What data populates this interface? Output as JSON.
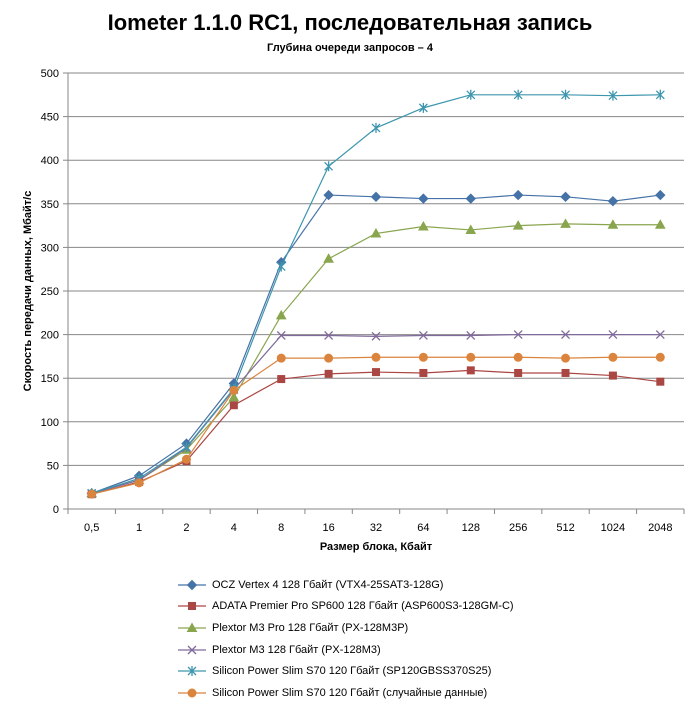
{
  "chart_data": {
    "type": "line",
    "title": "Iometer 1.1.0 RC1, последовательная запись",
    "subtitle": "Глубина очереди запросов – 4",
    "xlabel": "Размер блока, Кбайт",
    "ylabel": "Скорость передачи данных, Мбайт/с",
    "categories": [
      "0,5",
      "1",
      "2",
      "4",
      "8",
      "16",
      "32",
      "64",
      "128",
      "256",
      "512",
      "1024",
      "2048"
    ],
    "ylim": [
      0,
      500
    ],
    "yticks": [
      0,
      50,
      100,
      150,
      200,
      250,
      300,
      350,
      400,
      450,
      500
    ],
    "grid": true,
    "legend_position": "bottom",
    "series": [
      {
        "name": "OCZ Vertex  4 128 Гбайт (VTX4-25SAT3-128G)",
        "color": "#4572A7",
        "marker": "diamond",
        "values": [
          18,
          38,
          75,
          144,
          283,
          360,
          358,
          356,
          356,
          360,
          358,
          353,
          360
        ]
      },
      {
        "name": "ADATA  Premier Pro SP600 128 Гбайт (ASP600S3-128GM-C)",
        "color": "#AA4643",
        "marker": "square",
        "values": [
          17,
          31,
          55,
          119,
          149,
          155,
          157,
          156,
          159,
          156,
          156,
          153,
          146
        ]
      },
      {
        "name": "Plextor M3 Pro 128 Гбайт (PX-128M3P)",
        "color": "#89A54E",
        "marker": "triangle",
        "values": [
          18,
          33,
          68,
          128,
          222,
          287,
          316,
          324,
          320,
          325,
          327,
          326,
          326
        ]
      },
      {
        "name": "Plextor M3 128 Гбайт (PX-128M3)",
        "color": "#80699B",
        "marker": "x",
        "values": [
          18,
          33,
          70,
          137,
          199,
          199,
          198,
          199,
          199,
          200,
          200,
          200,
          200
        ]
      },
      {
        "name": "Silicon Power Slim S70 120 Гбайт (SP120GBSS370S25)",
        "color": "#3D96AE",
        "marker": "star",
        "values": [
          18,
          35,
          71,
          138,
          278,
          393,
          437,
          460,
          475,
          475,
          475,
          474,
          475
        ]
      },
      {
        "name": "Silicon Power Slim S70 120 Гбайт (случайные данные)",
        "color": "#DB843D",
        "marker": "circle",
        "values": [
          17,
          30,
          57,
          136,
          173,
          173,
          174,
          174,
          174,
          174,
          173,
          174,
          174
        ]
      }
    ]
  }
}
